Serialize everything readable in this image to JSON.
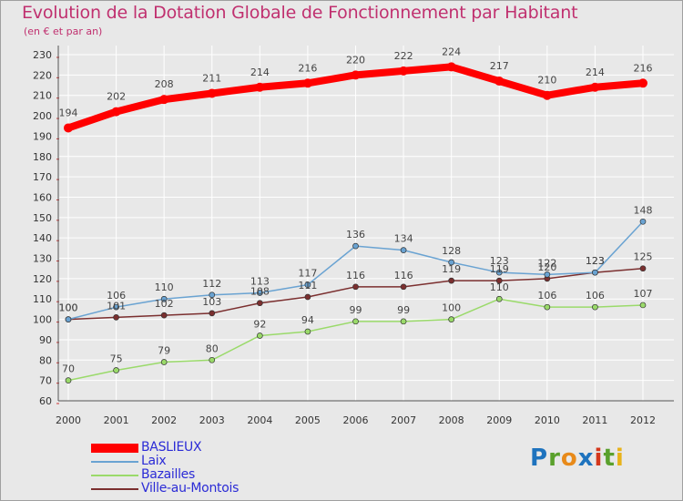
{
  "title": "Evolution de la Dotation Globale de Fonctionnement par Habitant",
  "subtitle": "(en € et par an)",
  "logo": {
    "text": "Proxiti",
    "letters": [
      {
        "ch": "P",
        "color": "#1e73be"
      },
      {
        "ch": "r",
        "color": "#5aa02c"
      },
      {
        "ch": "o",
        "color": "#e88a1a"
      },
      {
        "ch": "x",
        "color": "#1e73be"
      },
      {
        "ch": "i",
        "color": "#d4371c"
      },
      {
        "ch": "t",
        "color": "#5aa02c"
      },
      {
        "ch": "i",
        "color": "#e8b21a"
      }
    ]
  },
  "chart_data": {
    "type": "line",
    "title": "Evolution de la Dotation Globale de Fonctionnement par Habitant",
    "subtitle": "(en € et par an)",
    "x": [
      "2000",
      "2001",
      "2002",
      "2003",
      "2004",
      "2005",
      "2006",
      "2007",
      "2008",
      "2009",
      "2010",
      "2011",
      "2012"
    ],
    "ylim": [
      60,
      230
    ],
    "yticks": [
      60,
      70,
      80,
      90,
      100,
      110,
      120,
      130,
      140,
      150,
      160,
      170,
      180,
      190,
      200,
      210,
      220,
      230
    ],
    "grid": true,
    "legend_position": "bottom-left",
    "series": [
      {
        "name": "BASLIEUX",
        "color": "#ff0000",
        "values": [
          194,
          202,
          208,
          211,
          214,
          216,
          220,
          222,
          224,
          217,
          210,
          214,
          216
        ]
      },
      {
        "name": "Laix",
        "color": "#6aa3d2",
        "values": [
          100,
          106,
          110,
          112,
          113,
          117,
          136,
          134,
          128,
          123,
          122,
          123,
          148
        ]
      },
      {
        "name": "Bazailles",
        "color": "#9ada6a",
        "values": [
          70,
          75,
          79,
          80,
          92,
          94,
          99,
          99,
          100,
          110,
          106,
          106,
          107
        ]
      },
      {
        "name": "Ville-au-Montois",
        "color": "#7b2f2f",
        "values": [
          100,
          101,
          102,
          103,
          108,
          111,
          116,
          116,
          119,
          119,
          120,
          123,
          125
        ]
      }
    ]
  }
}
